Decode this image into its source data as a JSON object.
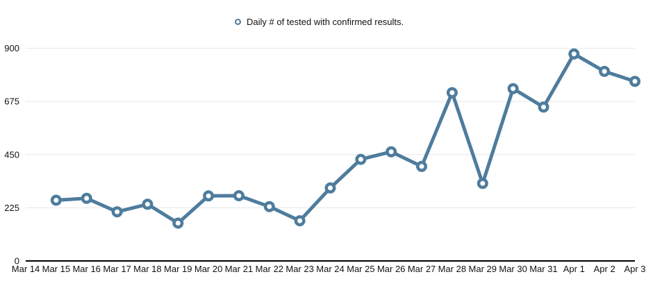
{
  "legend": {
    "label": "Daily # of tested with confirmed results.",
    "marker_icon": "ring-icon"
  },
  "colors": {
    "series": "#4e7c9d",
    "marker_fill": "#ffffff",
    "grid": "#e7e7e7",
    "axis": "#000000",
    "label": "#111111",
    "background": "#ffffff"
  },
  "chart_data": {
    "type": "line",
    "title": "",
    "xlabel": "",
    "ylabel": "",
    "legend_position": "top-center",
    "grid": "horizontal",
    "ylim": [
      0,
      900
    ],
    "y_ticks": [
      0,
      225,
      450,
      675,
      900
    ],
    "categories": [
      "Mar 14",
      "Mar 15",
      "Mar 16",
      "Mar 17",
      "Mar 18",
      "Mar 19",
      "Mar 20",
      "Mar 21",
      "Mar 22",
      "Mar 23",
      "Mar 24",
      "Mar 25",
      "Mar 26",
      "Mar 27",
      "Mar 28",
      "Mar 29",
      "Mar 30",
      "Mar 31",
      "Apr 1",
      "Apr 2",
      "Apr 3"
    ],
    "series": [
      {
        "name": "Daily # of tested with confirmed results.",
        "values": [
          null,
          257,
          265,
          208,
          240,
          160,
          275,
          276,
          230,
          170,
          309,
          430,
          462,
          400,
          712,
          328,
          729,
          651,
          876,
          802,
          760
        ]
      }
    ]
  }
}
